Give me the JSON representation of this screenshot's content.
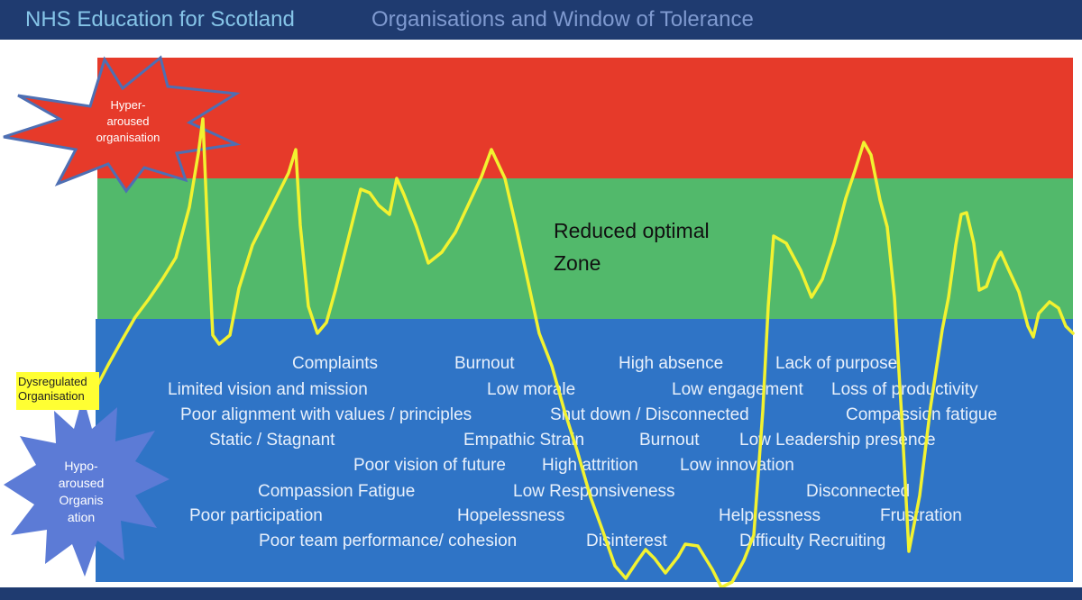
{
  "header": {
    "brand": "NHS Education for Scotland",
    "title": "Organisations and Window of Tolerance"
  },
  "zones": {
    "optimal_line1": "Reduced optimal",
    "optimal_line2": "Zone"
  },
  "labels": {
    "hyper_line1": "Hyper-",
    "hyper_line2": "aroused",
    "hyper_line3": "organisation",
    "dysregulated_line1": "Dysregulated",
    "dysregulated_line2": "Organisation",
    "hypo_line1": "Hypo-",
    "hypo_line2": "aroused",
    "hypo_line3": "Organis",
    "hypo_line4": "ation"
  },
  "terms": [
    "Complaints",
    "Burnout",
    "High absence",
    "Lack of purpose",
    "Limited vision and mission",
    "Low morale",
    "Low engagement",
    "Loss of productivity",
    "Poor alignment  with values / principles",
    "Shut down / Disconnected",
    "Compassion fatigue",
    "Static / Stagnant",
    "Empathic Strain",
    "Burnout",
    "Low Leadership presence",
    "Poor vision of future",
    "High attrition",
    "Low innovation",
    "Compassion Fatigue",
    "Low Responsiveness",
    "Disconnected",
    "Poor participation",
    "Hopelessness",
    "Helplessness",
    "Frustration",
    "Poor team performance/ cohesion",
    "Disinterest",
    "Difficulty Recruiting"
  ],
  "colors": {
    "hyper_zone": "#e63a2a",
    "optimal_zone": "#52b96b",
    "hypo_zone": "#2f74c6",
    "arousal_line": "#f2f230",
    "header_bg": "#1f3b70"
  }
}
